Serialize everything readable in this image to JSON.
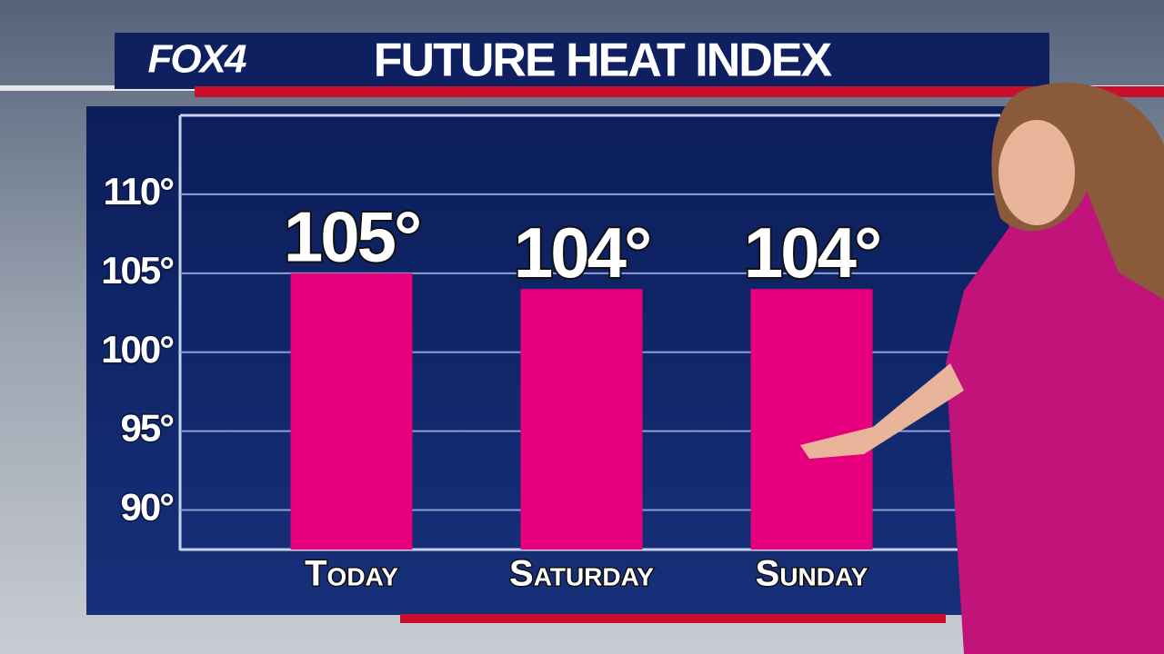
{
  "logo": "FOX4",
  "chart_data": {
    "type": "bar",
    "title": "FUTURE HEAT INDEX",
    "categories": [
      "Today",
      "Saturday",
      "Sunday"
    ],
    "values": [
      105,
      104,
      104
    ],
    "value_labels": [
      "105°",
      "104°",
      "104°"
    ],
    "color": "#e6007e",
    "ylim": [
      87.5,
      115
    ],
    "yticks": [
      {
        "value": 90,
        "label": "90°"
      },
      {
        "value": 95,
        "label": "95°"
      },
      {
        "value": 100,
        "label": "100°"
      },
      {
        "value": 105,
        "label": "105°"
      },
      {
        "value": 110,
        "label": "110°"
      }
    ],
    "grid": true
  }
}
